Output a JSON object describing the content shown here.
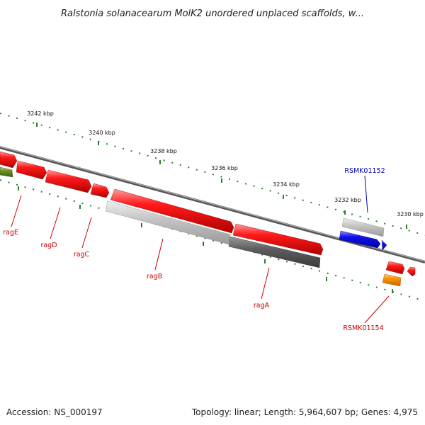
{
  "title": "Ralstonia solanacearum MolK2 unordered unplaced scaffolds, w...",
  "footer": {
    "accession": "Accession: NS_000197",
    "summary": "Topology: linear; Length: 5,964,607 bp; Genes: 4,975"
  },
  "colors": {
    "backbone": "#777777",
    "tick": "#2e7d32",
    "red_gene": "#e00000",
    "light_gene": "#bdbdbd",
    "dark_gene": "#5e5e5e",
    "blue_gene": "#0000dd",
    "orange_gene": "#ff8c00",
    "olive_gene": "#6b8e23",
    "label_red": "#cc0000",
    "label_blue": "#0000aa"
  },
  "ticks": [
    {
      "label": "3242 kbp"
    },
    {
      "label": "3240 kbp"
    },
    {
      "label": "3238 kbp"
    },
    {
      "label": "3236 kbp"
    },
    {
      "label": "3234 kbp"
    },
    {
      "label": "3232 kbp"
    },
    {
      "label": "3230 kbp"
    }
  ],
  "gene_labels": [
    {
      "text": "ragE",
      "color": "red"
    },
    {
      "text": "ragD",
      "color": "red"
    },
    {
      "text": "ragC",
      "color": "red"
    },
    {
      "text": "ragB",
      "color": "red"
    },
    {
      "text": "ragA",
      "color": "red"
    },
    {
      "text": "RSMK01152",
      "color": "blue"
    },
    {
      "text": "RSMK01154",
      "color": "red"
    }
  ]
}
